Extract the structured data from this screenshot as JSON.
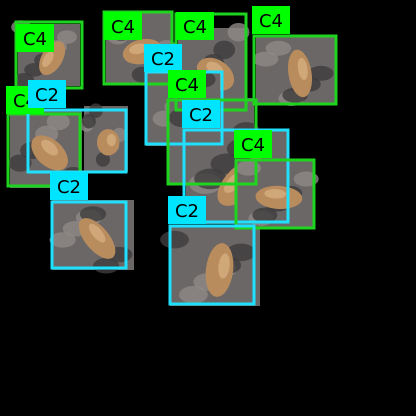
{
  "image": {
    "background": "#000000",
    "subject": "sea lions on dark rocks",
    "crop_texture": {
      "rock_dark": "#3e3c3d",
      "rock_mid": "#6b6766",
      "rock_light": "#8e8a86",
      "animal_dark": "#8a6a44",
      "animal_mid": "#b98c5e",
      "animal_light": "#d8b083"
    }
  },
  "classes": {
    "C4": {
      "label": "C4",
      "box_color": "#1ed41e",
      "tag_color": "#00ff00",
      "text_color": "#000000"
    },
    "C2": {
      "label": "C2",
      "box_color": "#1ee0ff",
      "tag_color": "#00e5ff",
      "text_color": "#000000"
    }
  },
  "detections": [
    {
      "class": "C4"
    },
    {
      "class": "C4"
    },
    {
      "class": "C4"
    },
    {
      "class": "C4"
    },
    {
      "class": "C2"
    },
    {
      "class": "C4"
    },
    {
      "class": "C4"
    },
    {
      "class": "C2"
    },
    {
      "class": "C2"
    },
    {
      "class": "C4"
    },
    {
      "class": "C2"
    },
    {
      "class": "C2"
    }
  ]
}
